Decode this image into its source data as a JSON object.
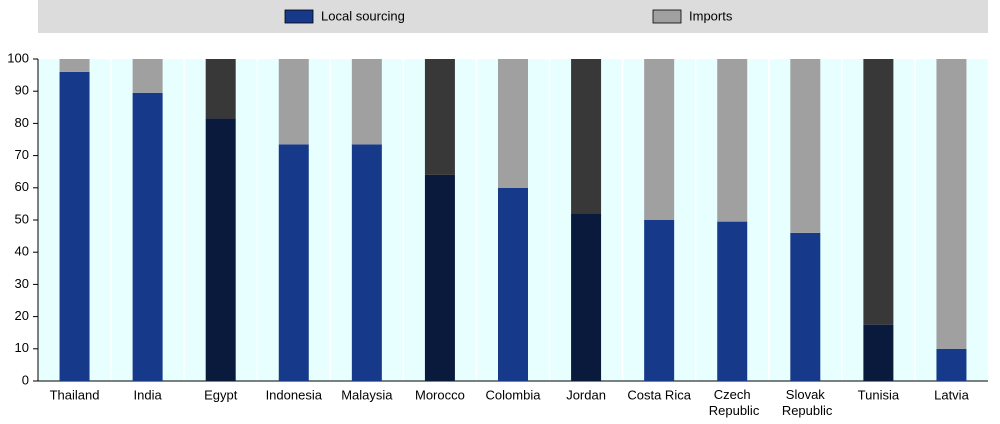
{
  "chart_data": {
    "type": "stacked-bar",
    "categories": [
      "Thailand",
      "India",
      "Egypt",
      "Indonesia",
      "Malaysia",
      "Morocco",
      "Colombia",
      "Jordan",
      "Costa Rica",
      "Czech Republic",
      "Slovak Republic",
      "Tunisia",
      "Latvia"
    ],
    "series": [
      {
        "name": "Local sourcing",
        "color": "#17398a",
        "colors": [
          "#17398a",
          "#17398a",
          "#0a1a3c",
          "#17398a",
          "#17398a",
          "#0a1a3c",
          "#17398a",
          "#0a1a3c",
          "#17398a",
          "#17398a",
          "#17398a",
          "#0a1a3c",
          "#17398a"
        ],
        "values": [
          96,
          89.5,
          81.5,
          73.5,
          73.5,
          64,
          60,
          52,
          50,
          49.5,
          46,
          17.5,
          10
        ]
      },
      {
        "name": "Imports",
        "color": "#a0a0a0",
        "colors": [
          "#a0a0a0",
          "#a0a0a0",
          "#383838",
          "#a0a0a0",
          "#a0a0a0",
          "#383838",
          "#a0a0a0",
          "#383838",
          "#a0a0a0",
          "#a0a0a0",
          "#a0a0a0",
          "#383838",
          "#a0a0a0"
        ],
        "values": [
          4,
          10.5,
          18.5,
          26.5,
          26.5,
          36,
          40,
          48,
          50,
          50.5,
          54,
          82.5,
          90
        ]
      }
    ],
    "ylim": [
      0,
      100
    ],
    "yticks": [
      0,
      10,
      20,
      30,
      40,
      50,
      60,
      70,
      80,
      90,
      100
    ]
  }
}
